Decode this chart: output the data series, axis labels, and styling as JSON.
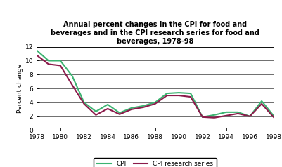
{
  "years": [
    1978,
    1979,
    1980,
    1981,
    1982,
    1983,
    1984,
    1985,
    1986,
    1987,
    1988,
    1989,
    1990,
    1991,
    1992,
    1993,
    1994,
    1995,
    1996,
    1997,
    1998
  ],
  "cpi": [
    11.5,
    10.0,
    10.0,
    7.8,
    4.0,
    2.7,
    3.7,
    2.5,
    3.2,
    3.5,
    4.0,
    5.3,
    5.4,
    5.3,
    1.9,
    2.2,
    2.6,
    2.6,
    2.0,
    4.2,
    2.1
  ],
  "cpi_research": [
    10.8,
    9.5,
    9.3,
    6.5,
    3.8,
    2.2,
    3.1,
    2.3,
    3.0,
    3.3,
    3.8,
    5.0,
    5.0,
    4.8,
    1.9,
    1.8,
    2.1,
    2.4,
    2.0,
    3.8,
    1.9
  ],
  "cpi_color": "#3cb371",
  "cpi_research_color": "#8b1a4a",
  "title": "Annual percent changes in the CPI for food and\nbeverages and in the CPI research series for food and\nbeverages, 1978-98",
  "ylabel": "Percent change",
  "ylim": [
    0,
    12
  ],
  "yticks": [
    0,
    2,
    4,
    6,
    8,
    10,
    12
  ],
  "xtick_years": [
    1978,
    1980,
    1982,
    1984,
    1986,
    1988,
    1990,
    1992,
    1994,
    1996,
    1998
  ],
  "legend_cpi": "CPI",
  "legend_research": "CPI research series",
  "bg_color": "#ffffff",
  "plot_bg_color": "#ffffff"
}
